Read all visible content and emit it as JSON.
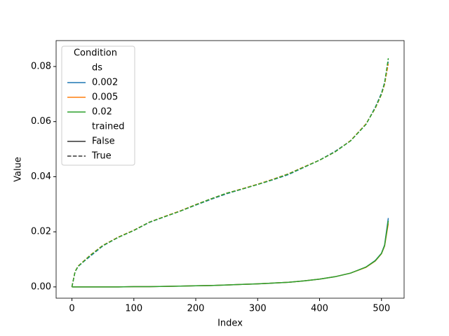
{
  "chart_data": {
    "type": "line",
    "x_label": "Index",
    "y_label": "Value",
    "x": [
      0,
      5,
      10,
      20,
      30,
      50,
      75,
      100,
      125,
      150,
      175,
      200,
      225,
      250,
      275,
      300,
      325,
      350,
      375,
      400,
      425,
      450,
      475,
      490,
      500,
      505,
      511
    ],
    "series": [
      {
        "color": "#1f77b4",
        "dashed": false,
        "values": [
          0,
          0,
          0,
          0,
          0,
          0,
          0,
          0.0001,
          0.0001,
          0.0002,
          0.0003,
          0.0004,
          0.0005,
          0.0007,
          0.0009,
          0.0011,
          0.0014,
          0.0017,
          0.0022,
          0.0028,
          0.0037,
          0.005,
          0.0072,
          0.0096,
          0.0122,
          0.0152,
          0.025
        ]
      },
      {
        "color": "#ff7f0e",
        "dashed": false,
        "values": [
          0,
          0,
          0,
          0,
          0,
          0,
          0,
          0.0001,
          0.0001,
          0.0002,
          0.0003,
          0.0004,
          0.0005,
          0.0007,
          0.0009,
          0.0011,
          0.0014,
          0.0017,
          0.0022,
          0.0028,
          0.0037,
          0.005,
          0.0071,
          0.0094,
          0.012,
          0.0148,
          0.023
        ]
      },
      {
        "color": "#2ca02c",
        "dashed": false,
        "values": [
          0,
          0,
          0,
          0,
          0,
          0,
          0,
          0.0001,
          0.0001,
          0.0002,
          0.0003,
          0.0004,
          0.0005,
          0.0007,
          0.0009,
          0.0011,
          0.0014,
          0.0017,
          0.0022,
          0.0028,
          0.0037,
          0.005,
          0.0072,
          0.0095,
          0.0121,
          0.015,
          0.024
        ]
      },
      {
        "color": "#1f77b4",
        "dashed": true,
        "values": [
          0,
          0.0055,
          0.0074,
          0.0094,
          0.0112,
          0.0149,
          0.018,
          0.0205,
          0.0234,
          0.0255,
          0.0275,
          0.0297,
          0.0318,
          0.0338,
          0.0355,
          0.0372,
          0.0389,
          0.0408,
          0.0434,
          0.046,
          0.0492,
          0.053,
          0.059,
          0.0652,
          0.0703,
          0.0742,
          0.082
        ]
      },
      {
        "color": "#ff7f0e",
        "dashed": true,
        "values": [
          0,
          0.0056,
          0.0076,
          0.0096,
          0.0116,
          0.0151,
          0.0181,
          0.0206,
          0.0235,
          0.0256,
          0.0276,
          0.0299,
          0.032,
          0.034,
          0.0356,
          0.0373,
          0.0391,
          0.0411,
          0.0436,
          0.046,
          0.049,
          0.0531,
          0.0592,
          0.0648,
          0.0698,
          0.0735,
          0.081
        ]
      },
      {
        "color": "#2ca02c",
        "dashed": true,
        "values": [
          0,
          0.0055,
          0.0075,
          0.0095,
          0.0115,
          0.015,
          0.018,
          0.0205,
          0.0235,
          0.0255,
          0.0275,
          0.0298,
          0.032,
          0.034,
          0.0355,
          0.0372,
          0.039,
          0.041,
          0.0435,
          0.046,
          0.049,
          0.053,
          0.059,
          0.065,
          0.07,
          0.074,
          0.083
        ]
      }
    ],
    "xlim": [
      -25.55,
      536.55
    ],
    "ylim": [
      -0.0041,
      0.0894
    ],
    "xticks": [
      0,
      100,
      200,
      300,
      400,
      500
    ],
    "yticks": [
      {
        "value": 0,
        "label": "0.00"
      },
      0.02,
      0.04,
      0.06,
      0.08
    ],
    "legend": {
      "title": "Condition",
      "position": "upper left",
      "sections": [
        {
          "title": "ds",
          "entries": [
            {
              "label": "0.002",
              "color": "#1f77b4"
            },
            {
              "label": "0.005",
              "color": "#ff7f0e"
            },
            {
              "label": "0.02",
              "color": "#2ca02c"
            }
          ]
        },
        {
          "title": "trained",
          "entries": [
            {
              "label": "False",
              "color": "#333333",
              "dashed": false
            },
            {
              "label": "True",
              "color": "#333333",
              "dashed": true
            }
          ]
        }
      ]
    }
  }
}
